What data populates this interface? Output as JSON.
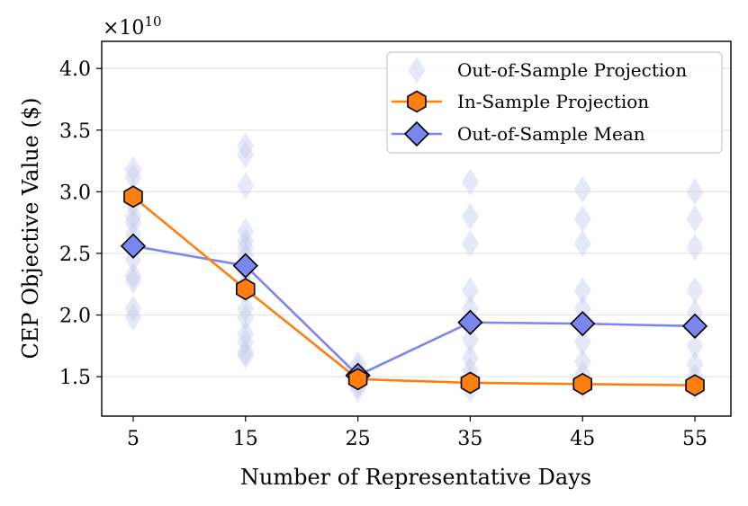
{
  "chart_data": {
    "type": "line",
    "ylabel": "CEP Objective Value ($)",
    "xlabel": "Number of Representative Days",
    "yscale_label": "×10",
    "yscale_exponent": "10",
    "x": [
      5,
      15,
      25,
      35,
      45,
      55
    ],
    "xticks": [
      "5",
      "15",
      "25",
      "35",
      "45",
      "55"
    ],
    "yticks": [
      1.5,
      2.0,
      2.5,
      3.0,
      3.5,
      4.0
    ],
    "ytick_labels": [
      "1.5",
      "2.0",
      "2.5",
      "3.0",
      "3.5",
      "4.0"
    ],
    "xlim": [
      2.2,
      58.2
    ],
    "ylim": [
      1.18,
      4.22
    ],
    "grid": "horizontal",
    "legend_position": "top-right",
    "colors": {
      "scatter": "#c5cceb",
      "in_sample": "#ff7f0e",
      "mean": "#7b87f0",
      "grid": "#e6e6e6"
    },
    "series": [
      {
        "name": "Out-of-Sample Projection",
        "kind": "scatter",
        "points": [
          [
            5,
            3.18
          ],
          [
            5,
            3.12
          ],
          [
            5,
            2.98
          ],
          [
            5,
            2.9
          ],
          [
            5,
            2.8
          ],
          [
            5,
            2.75
          ],
          [
            5,
            2.65
          ],
          [
            5,
            2.55
          ],
          [
            5,
            2.45
          ],
          [
            5,
            2.32
          ],
          [
            5,
            2.28
          ],
          [
            5,
            2.05
          ],
          [
            5,
            1.98
          ],
          [
            15,
            3.37
          ],
          [
            15,
            3.3
          ],
          [
            15,
            3.05
          ],
          [
            15,
            2.68
          ],
          [
            15,
            2.6
          ],
          [
            15,
            2.55
          ],
          [
            15,
            2.48
          ],
          [
            15,
            2.4
          ],
          [
            15,
            2.35
          ],
          [
            15,
            2.25
          ],
          [
            15,
            2.2
          ],
          [
            15,
            2.05
          ],
          [
            15,
            1.98
          ],
          [
            15,
            1.85
          ],
          [
            15,
            1.78
          ],
          [
            15,
            1.7
          ],
          [
            15,
            1.67
          ],
          [
            25,
            1.6
          ],
          [
            25,
            1.55
          ],
          [
            25,
            1.5
          ],
          [
            25,
            1.46
          ],
          [
            25,
            1.43
          ],
          [
            25,
            1.4
          ],
          [
            35,
            3.08
          ],
          [
            35,
            2.8
          ],
          [
            35,
            2.58
          ],
          [
            35,
            2.2
          ],
          [
            35,
            2.05
          ],
          [
            35,
            1.95
          ],
          [
            35,
            1.8
          ],
          [
            35,
            1.65
          ],
          [
            35,
            1.55
          ],
          [
            35,
            1.48
          ],
          [
            35,
            1.4
          ],
          [
            45,
            3.02
          ],
          [
            45,
            2.78
          ],
          [
            45,
            2.58
          ],
          [
            45,
            2.2
          ],
          [
            45,
            2.05
          ],
          [
            45,
            1.92
          ],
          [
            45,
            1.78
          ],
          [
            45,
            1.62
          ],
          [
            45,
            1.52
          ],
          [
            45,
            1.42
          ],
          [
            55,
            3.0
          ],
          [
            55,
            2.78
          ],
          [
            55,
            2.55
          ],
          [
            55,
            2.2
          ],
          [
            55,
            2.02
          ],
          [
            55,
            1.92
          ],
          [
            55,
            1.75
          ],
          [
            55,
            1.6
          ],
          [
            55,
            1.5
          ],
          [
            55,
            1.42
          ]
        ]
      },
      {
        "name": "In-Sample Projection",
        "kind": "line",
        "marker": "hexagon",
        "values": [
          2.96,
          2.21,
          1.48,
          1.45,
          1.44,
          1.43
        ]
      },
      {
        "name": "Out-of-Sample Mean",
        "kind": "line",
        "marker": "diamond",
        "values": [
          2.56,
          2.4,
          1.51,
          1.94,
          1.93,
          1.91
        ]
      }
    ]
  }
}
